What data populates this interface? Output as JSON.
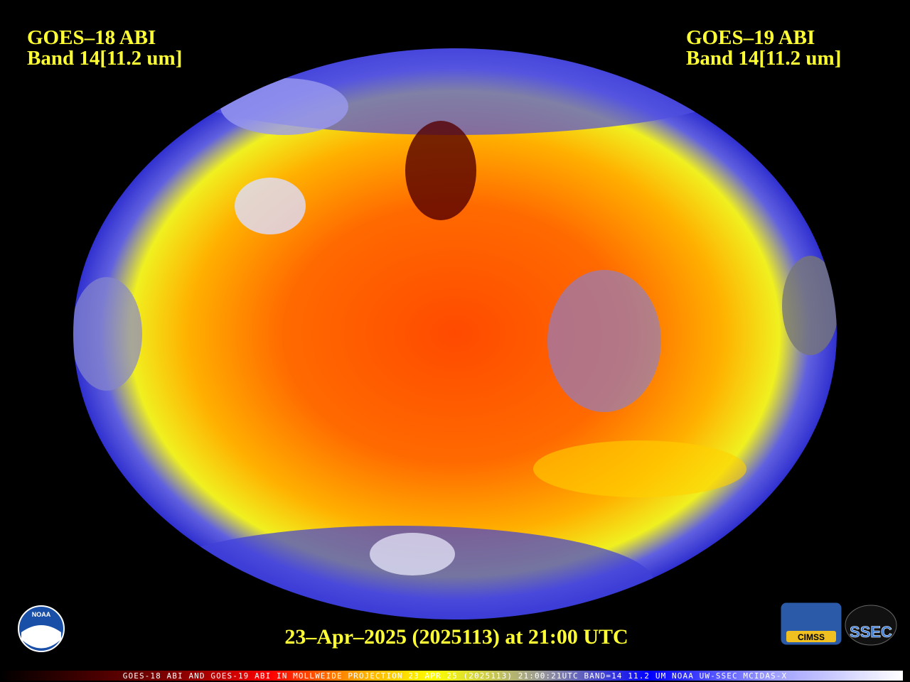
{
  "left_label": {
    "satellite": "GOES–18 ABI",
    "band": "Band 14[11.2 um]"
  },
  "right_label": {
    "satellite": "GOES–19 ABI",
    "band": "Band 14[11.2 um]"
  },
  "timestamp": "23–Apr–2025 (2025113) at 21:00 UTC",
  "colorbar_caption": "GOES-18 ABI AND GOES-19 ABI IN MOLLWEIDE PROJECTION 23 APR 25 (2025113) 21:00:21UTC BAND=14 11.2 UM NOAA UW-SSEC MCIDAS-X",
  "logos": {
    "noaa": "NOAA",
    "cimss": "CIMSS",
    "ssec": "SSEC"
  }
}
